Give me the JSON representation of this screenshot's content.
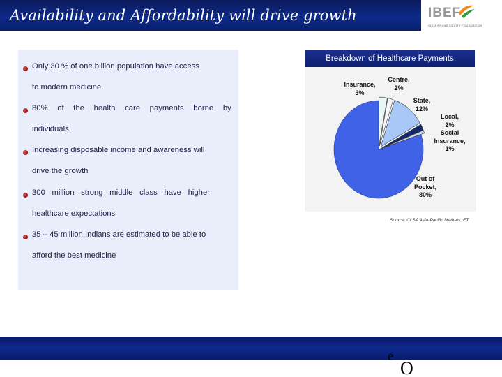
{
  "header": {
    "title": "Availability and Affordability will drive growth",
    "logo": {
      "name": "IBEF",
      "tagline": "INDIA BRAND EQUITY FOUNDATION",
      "mark_colors": [
        "#f08a1c",
        "#2a9a3a"
      ]
    }
  },
  "bullets": [
    {
      "lines": [
        "Only 30 % of one billion population have access",
        "to modern medicine."
      ]
    },
    {
      "lines": [
        "80% of the health care payments borne by",
        "individuals"
      ]
    },
    {
      "lines": [
        "Increasing disposable income and awareness will",
        "drive the growth"
      ]
    },
    {
      "lines": [
        "300 million strong middle class have higher",
        "healthcare expectations"
      ]
    },
    {
      "lines": [
        "35 – 45 million Indians are estimated to be able to",
        "afford the best medicine"
      ]
    }
  ],
  "chart_data": {
    "type": "pie",
    "title": "Breakdown of Healthcare Payments",
    "slices": [
      {
        "label": "Out of Pocket",
        "value": 80,
        "display": "80%",
        "color": "#3f62e6"
      },
      {
        "label": "Insurance",
        "value": 3,
        "display": "3%",
        "color": "#e8f6f6"
      },
      {
        "label": "Centre",
        "value": 2,
        "display": "2%",
        "color": "#f6f6fa"
      },
      {
        "label": "State",
        "value": 12,
        "display": "12%",
        "color": "#a7c8f6"
      },
      {
        "label": "Local",
        "value": 2,
        "display": "2%",
        "color": "#142a70"
      },
      {
        "label": "Social Insurance",
        "value": 1,
        "display": "1%",
        "color": "#c9d3e8"
      }
    ],
    "labels": [
      {
        "lines": [
          "Insurance,",
          "3%"
        ]
      },
      {
        "lines": [
          "Centre,",
          "2%"
        ]
      },
      {
        "lines": [
          "State,",
          "12%"
        ]
      },
      {
        "lines": [
          "Local,",
          "2%",
          "Social",
          "Insurance,",
          "1%"
        ]
      },
      {
        "lines": [
          "Out of",
          "Pocket,",
          "80%"
        ]
      }
    ]
  },
  "source": "Source: CLSA Asia-Pacific Markets, ET",
  "footer": {
    "glyph_e": "e",
    "glyph_o": "O"
  },
  "colors": {
    "header_band": "#0d2a8a",
    "panel_bg": "#e9eefa",
    "bullet_dot": "#a01818",
    "pie_main": "#3f62e6"
  }
}
